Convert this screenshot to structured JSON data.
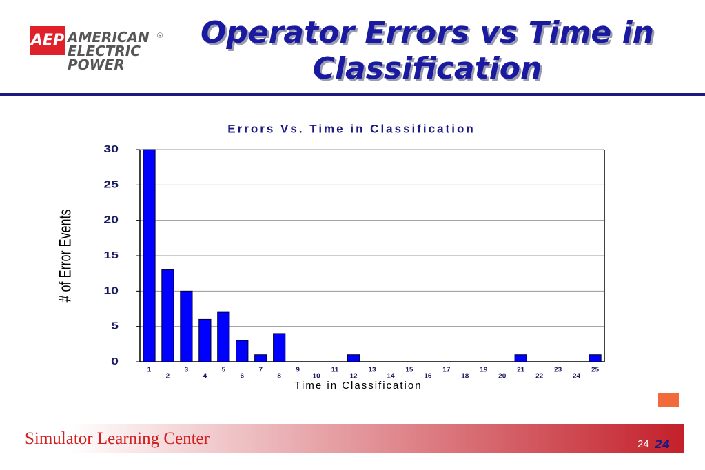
{
  "header": {
    "logo": {
      "badge": "AEP",
      "lines": [
        "AMERICAN",
        "ELECTRIC",
        "POWER"
      ],
      "mark": "®"
    },
    "title": "Operator Errors vs Time in Classification"
  },
  "chart_data": {
    "type": "bar",
    "title": "Errors Vs. Time in Classification",
    "x_label": "Time in Classification",
    "y_label": "# of Error Events",
    "categories": [
      "1",
      "2",
      "3",
      "4",
      "5",
      "6",
      "7",
      "8",
      "9",
      "10",
      "11",
      "12",
      "13",
      "14",
      "15",
      "16",
      "17",
      "18",
      "19",
      "20",
      "21",
      "22",
      "23",
      "24",
      "25"
    ],
    "values": [
      30,
      13,
      10,
      6,
      7,
      3,
      1,
      4,
      0,
      0,
      0,
      1,
      0,
      0,
      0,
      0,
      0,
      0,
      0,
      0,
      1,
      0,
      0,
      0,
      1
    ],
    "color": "#0000ff",
    "ylim": [
      0,
      30
    ],
    "yticks": [
      0,
      5,
      10,
      15,
      20,
      25,
      30
    ],
    "grid": true
  },
  "footer": {
    "text": "Simulator Learning Center",
    "page_numbers": [
      "24",
      "24"
    ]
  }
}
